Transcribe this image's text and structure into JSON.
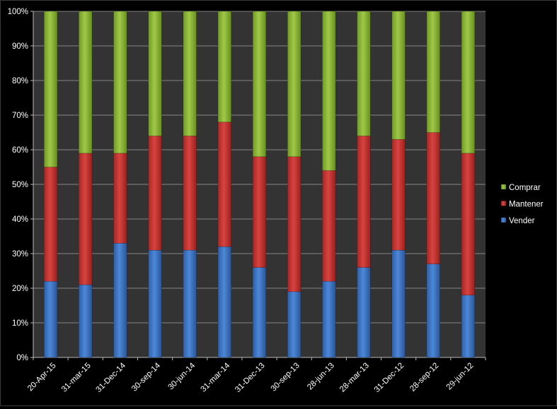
{
  "chart_data": {
    "type": "stacked-bar-100",
    "title": "",
    "xlabel": "",
    "ylabel": "",
    "ylim": [
      0,
      100
    ],
    "yticks": [
      "0%",
      "10%",
      "20%",
      "30%",
      "40%",
      "50%",
      "60%",
      "70%",
      "80%",
      "90%",
      "100%"
    ],
    "grid": true,
    "legend_position": "right",
    "categories": [
      "20-Apr-15",
      "31-mar-15",
      "31-Dec-14",
      "30-sep-14",
      "30-jun-14",
      "31-mar-14",
      "31-Dec-13",
      "30-sep-13",
      "28-jun-13",
      "28-mar-13",
      "31-Dec-12",
      "28-sep-12",
      "29-jun-12"
    ],
    "series": [
      {
        "name": "Vender",
        "color": "#3f78c8",
        "values": [
          22,
          21,
          33,
          31,
          31,
          32,
          26,
          19,
          22,
          26,
          31,
          27,
          18
        ]
      },
      {
        "name": "Mantener",
        "color": "#c8322f",
        "values": [
          33,
          38,
          26,
          33,
          33,
          36,
          32,
          39,
          32,
          38,
          32,
          38,
          41
        ]
      },
      {
        "name": "Comprar",
        "color": "#8fba38",
        "values": [
          45,
          41,
          41,
          36,
          36,
          32,
          42,
          42,
          46,
          36,
          37,
          35,
          41
        ]
      }
    ],
    "legend_order": [
      "Comprar",
      "Mantener",
      "Vender"
    ]
  }
}
